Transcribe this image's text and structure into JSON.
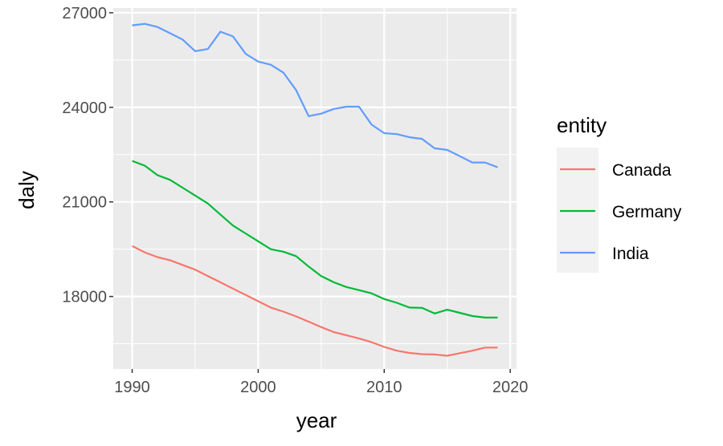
{
  "chart_data": {
    "type": "line",
    "xlabel": "year",
    "ylabel": "daly",
    "xlim": [
      1988.5,
      2020.5
    ],
    "ylim": [
      15700,
      27150
    ],
    "x_ticks": [
      1990,
      2000,
      2010,
      2020
    ],
    "x_tick_labels": [
      "1990",
      "2000",
      "2010",
      "2020"
    ],
    "y_ticks": [
      18000,
      21000,
      24000,
      27000
    ],
    "y_tick_labels": [
      "18000",
      "21000",
      "24000",
      "27000"
    ],
    "grid": true,
    "panel_background": "#ebebeb",
    "grid_color": "#ffffff",
    "legend": {
      "title": "entity",
      "position": "right"
    },
    "x": [
      1990,
      1991,
      1992,
      1993,
      1994,
      1995,
      1996,
      1997,
      1998,
      1999,
      2000,
      2001,
      2002,
      2003,
      2004,
      2005,
      2006,
      2007,
      2008,
      2009,
      2010,
      2011,
      2012,
      2013,
      2014,
      2015,
      2016,
      2017,
      2018,
      2019
    ],
    "series": [
      {
        "name": "Canada",
        "color": "#F8766D",
        "values": [
          19600,
          19400,
          19250,
          19150,
          19000,
          18850,
          18650,
          18450,
          18250,
          18050,
          17850,
          17650,
          17520,
          17370,
          17200,
          17030,
          16870,
          16770,
          16670,
          16550,
          16400,
          16280,
          16210,
          16170,
          16160,
          16120,
          16200,
          16280,
          16380,
          16380
        ]
      },
      {
        "name": "Germany",
        "color": "#00BA38",
        "values": [
          22300,
          22150,
          21850,
          21700,
          21450,
          21200,
          20950,
          20600,
          20250,
          20000,
          19750,
          19500,
          19420,
          19280,
          18950,
          18650,
          18450,
          18300,
          18200,
          18100,
          17920,
          17800,
          17650,
          17640,
          17460,
          17580,
          17480,
          17380,
          17330,
          17330
        ]
      },
      {
        "name": "India",
        "color": "#619CFF",
        "values": [
          26600,
          26650,
          26550,
          26350,
          26150,
          25780,
          25850,
          26400,
          26250,
          25700,
          25450,
          25350,
          25100,
          24550,
          23720,
          23800,
          23950,
          24020,
          24020,
          23450,
          23180,
          23150,
          23050,
          23000,
          22700,
          22650,
          22450,
          22250,
          22250,
          22100
        ]
      }
    ]
  }
}
